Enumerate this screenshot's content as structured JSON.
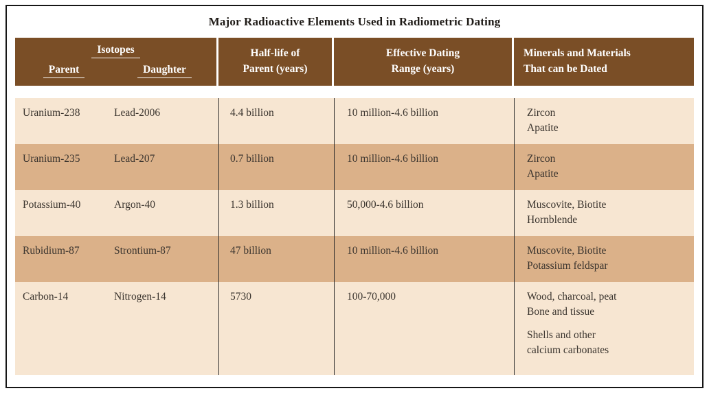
{
  "title": "Major Radioactive Elements Used in Radiometric Dating",
  "header": {
    "isotopes_label": "Isotopes",
    "parent_label": "Parent",
    "daughter_label": "Daughter",
    "half_life_line1": "Half-life of",
    "half_life_line2": "Parent (years)",
    "dating_range_line1": "Effective Dating",
    "dating_range_line2": "Range (years)",
    "minerals_line1": "Minerals and Materials",
    "minerals_line2": "That can be Dated"
  },
  "colors": {
    "header_brown": "#7a4e26",
    "row_light": "#f7e6d2",
    "row_dark": "#dbb189",
    "frame_border": "#161616",
    "header_text": "#ffffff",
    "body_text": "#3a342e"
  },
  "rows": [
    {
      "parent": "Uranium-238",
      "daughter": "Lead-2006",
      "half_life": "4.4 billion",
      "dating_range": "10 million-4.6 billion",
      "minerals_l1": "Zircon",
      "minerals_l2": "Apatite"
    },
    {
      "parent": "Uranium-235",
      "daughter": "Lead-207",
      "half_life": "0.7 billion",
      "dating_range": "10 million-4.6 billion",
      "minerals_l1": "Zircon",
      "minerals_l2": "Apatite"
    },
    {
      "parent": "Potassium-40",
      "daughter": "Argon-40",
      "half_life": "1.3 billion",
      "dating_range": "50,000-4.6 billion",
      "minerals_l1": "Muscovite, Biotite",
      "minerals_l2": "Hornblende"
    },
    {
      "parent": "Rubidium-87",
      "daughter": "Strontium-87",
      "half_life": "47 billion",
      "dating_range": "10 million-4.6 billion",
      "minerals_l1": "Muscovite, Biotite",
      "minerals_l2": "Potassium feldspar"
    },
    {
      "parent": "Carbon-14",
      "daughter": "Nitrogen-14",
      "half_life": "5730",
      "dating_range": "100-70,000",
      "minerals_l1": "Wood, charcoal, peat",
      "minerals_l2": "Bone and tissue",
      "minerals_l3": "Shells and other",
      "minerals_l4": "calcium carbonates"
    }
  ]
}
